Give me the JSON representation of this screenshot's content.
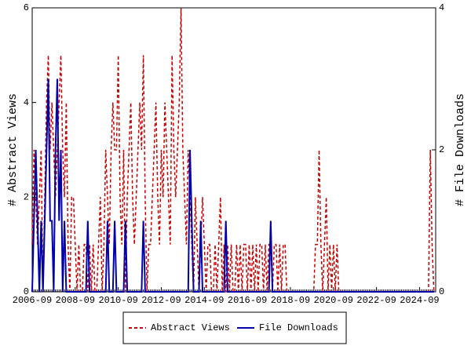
{
  "chart_data": {
    "type": "line",
    "y_label": "# Abstract Views",
    "y2_label": "# File Downloads",
    "ylim": [
      0,
      6
    ],
    "yticks": [
      0,
      2,
      4,
      6
    ],
    "y2lim": [
      0,
      4
    ],
    "y2ticks": [
      0,
      2,
      4
    ],
    "categories": [
      "2006-09",
      null,
      null,
      null,
      null,
      null,
      null,
      null,
      null,
      null,
      null,
      null,
      null,
      null,
      null,
      null,
      null,
      null,
      null,
      null,
      null,
      null,
      null,
      null,
      "2008-09",
      null,
      null,
      null,
      null,
      null,
      null,
      null,
      null,
      null,
      null,
      null,
      null,
      null,
      null,
      null,
      null,
      null,
      null,
      null,
      null,
      null,
      null,
      null,
      "2010-09",
      null,
      null,
      null,
      null,
      null,
      null,
      null,
      null,
      null,
      null,
      null,
      null,
      null,
      null,
      null,
      null,
      null,
      null,
      null,
      null,
      null,
      null,
      null,
      "2012-09",
      null,
      null,
      null,
      null,
      null,
      null,
      null,
      null,
      null,
      null,
      null,
      null,
      null,
      null,
      null,
      null,
      null,
      null,
      null,
      null,
      null,
      null,
      null,
      "2014-09",
      null,
      null,
      null,
      null,
      null,
      null,
      null,
      null,
      null,
      null,
      null,
      null,
      null,
      null,
      null,
      null,
      null,
      null,
      null,
      null,
      null,
      null,
      null,
      "2016-09",
      null,
      null,
      null,
      null,
      null,
      null,
      null,
      null,
      null,
      null,
      null,
      null,
      null,
      null,
      null,
      null,
      null,
      null,
      null,
      null,
      null,
      null,
      null,
      "2018-09",
      null,
      null,
      null,
      null,
      null,
      null,
      null,
      null,
      null,
      null,
      null,
      null,
      null,
      null,
      null,
      null,
      null,
      null,
      null,
      null,
      null,
      null,
      null,
      "2020-09",
      null,
      null,
      null,
      null,
      null,
      null,
      null,
      null,
      null,
      null,
      null,
      null,
      null,
      null,
      null,
      null,
      null,
      null,
      null,
      null,
      null,
      null,
      null,
      "2022-09",
      null,
      null,
      null,
      null,
      null,
      null,
      null,
      null,
      null,
      null,
      null,
      null,
      null,
      null,
      null,
      null,
      null,
      null,
      null,
      null,
      null,
      null,
      null,
      "2024-09",
      null,
      null,
      null,
      null,
      null,
      null,
      null,
      null
    ],
    "series": [
      {
        "name": "Abstract Views",
        "color": "#cc0000",
        "dash": true,
        "values": [
          1,
          3,
          2,
          1,
          2,
          3,
          0,
          2,
          4,
          5,
          3,
          4,
          3,
          2,
          3,
          4,
          5,
          3,
          2,
          4,
          1,
          0,
          2,
          2,
          1,
          0,
          1,
          0,
          0,
          1,
          1,
          0,
          1,
          0,
          1,
          0,
          0,
          1,
          2,
          0,
          1,
          3,
          2,
          1,
          3,
          4,
          3,
          3,
          5,
          2,
          1,
          3,
          0,
          2,
          3,
          4,
          2,
          1,
          2,
          3,
          4,
          3,
          5,
          2,
          0,
          1,
          1,
          2,
          3,
          4,
          2,
          1,
          3,
          2,
          4,
          3,
          2,
          1,
          5,
          3,
          2,
          3,
          4,
          6,
          3,
          2,
          1,
          3,
          2,
          1,
          0,
          2,
          1,
          0,
          1,
          2,
          1,
          0,
          1,
          1,
          0,
          0,
          1,
          0,
          1,
          2,
          0,
          1,
          0,
          1,
          0,
          1,
          0,
          0,
          1,
          0,
          1,
          0,
          1,
          1,
          0,
          1,
          0,
          1,
          0,
          1,
          0,
          1,
          1,
          0,
          1,
          0,
          1,
          1,
          0,
          1,
          1,
          0,
          1,
          0,
          1,
          1,
          0,
          0,
          0,
          0,
          0,
          0,
          0,
          0,
          0,
          0,
          0,
          0,
          0,
          0,
          0,
          0,
          1,
          1,
          3,
          1,
          0,
          1,
          2,
          0,
          1,
          0,
          1,
          0,
          1,
          0,
          0,
          0,
          0,
          0,
          0,
          0,
          0,
          0,
          0,
          0,
          0,
          0,
          0,
          0,
          0,
          0,
          0,
          0,
          0,
          0,
          0,
          0,
          0,
          0,
          0,
          0,
          0,
          0,
          0,
          0,
          0,
          0,
          0,
          0,
          0,
          0,
          0,
          0,
          0,
          0,
          0,
          0,
          0,
          0,
          0,
          0,
          0,
          0,
          0,
          0,
          3,
          1,
          0
        ]
      },
      {
        "name": "File Downloads",
        "color": "#0000aa",
        "axis": "y2",
        "values": [
          0,
          1,
          2,
          1,
          0,
          1,
          0,
          1,
          2,
          3,
          1,
          1,
          0,
          2,
          3,
          1,
          2,
          0,
          1,
          0,
          0,
          0,
          0,
          0,
          0,
          0,
          0,
          0,
          0,
          0,
          0,
          1,
          0,
          0,
          0,
          0,
          0,
          0,
          0,
          0,
          0,
          0,
          1,
          0,
          0,
          0,
          1,
          0,
          0,
          0,
          0,
          0,
          1,
          0,
          0,
          0,
          0,
          0,
          0,
          0,
          0,
          0,
          1,
          0,
          0,
          0,
          0,
          0,
          0,
          0,
          0,
          0,
          0,
          0,
          0,
          0,
          0,
          0,
          0,
          0,
          0,
          0,
          0,
          0,
          0,
          0,
          0,
          0,
          2,
          1,
          0,
          0,
          0,
          0,
          1,
          0,
          0,
          0,
          0,
          0,
          0,
          0,
          0,
          0,
          0,
          0,
          0,
          0,
          1,
          0,
          0,
          0,
          0,
          0,
          0,
          0,
          0,
          0,
          0,
          0,
          0,
          0,
          0,
          0,
          0,
          0,
          0,
          0,
          0,
          0,
          0,
          0,
          0,
          1,
          0,
          0,
          0,
          0,
          0,
          0,
          0,
          0,
          0,
          0,
          0,
          0,
          0,
          0,
          0,
          0,
          0,
          0,
          0,
          0,
          0,
          0,
          0,
          0,
          0,
          0,
          0,
          0,
          0,
          0,
          0,
          0,
          0,
          0,
          0,
          0,
          0,
          0,
          0,
          0,
          0,
          0,
          0,
          0,
          0,
          0,
          0,
          0,
          0,
          0,
          0,
          0,
          0,
          0,
          0,
          0,
          0,
          0,
          0,
          0,
          0,
          0,
          0,
          0,
          0,
          0,
          0,
          0,
          0,
          0,
          0,
          0,
          0,
          0,
          0,
          0,
          0,
          0,
          0,
          0,
          0,
          0,
          0,
          0,
          0,
          0,
          0,
          0,
          0,
          0,
          0
        ]
      }
    ]
  }
}
